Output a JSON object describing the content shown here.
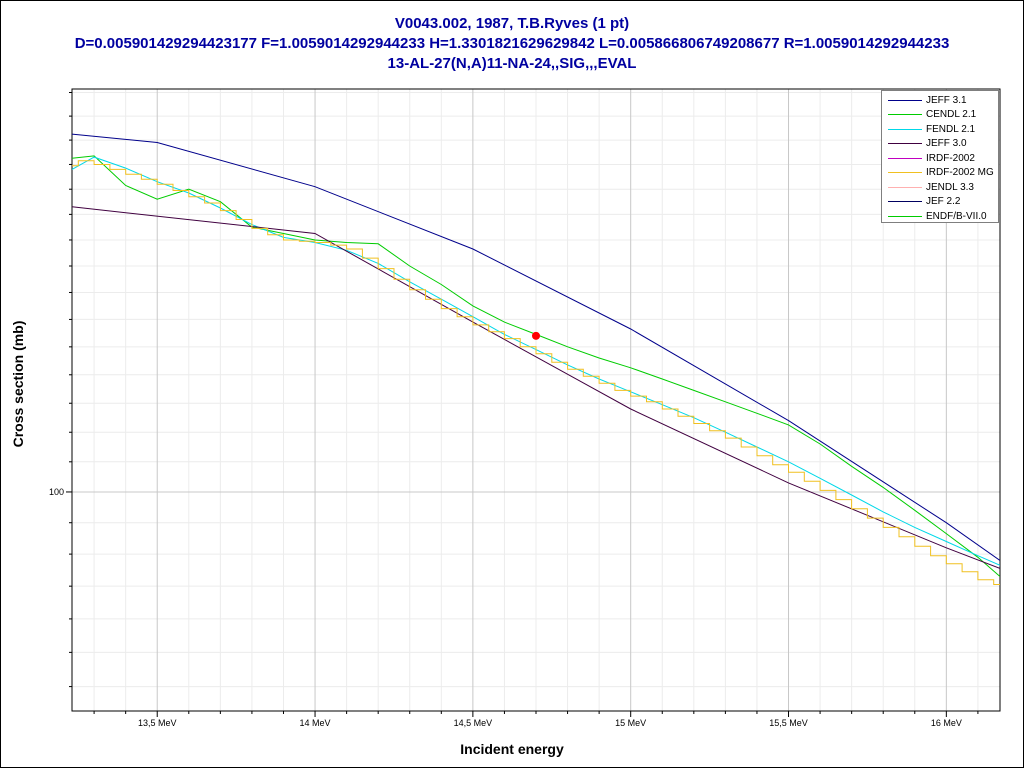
{
  "header": {
    "line1": "V0043.002, 1987, T.B.Ryves (1 pt)",
    "line2": "D=0.005901429294423177 F=1.0059014292944233 H=1.3301821629629842 L=0.005866806749208677 R=1.0059014292944233",
    "line3": "13-AL-27(N,A)11-NA-24,,SIG,,,EVAL"
  },
  "chart_data": {
    "type": "line",
    "xlabel": "Incident energy",
    "ylabel": "Cross section (mb)",
    "x_scale": "linear",
    "y_scale": "log",
    "xlim": [
      13.23,
      16.17
    ],
    "ylim": [
      86.6,
      130.3
    ],
    "grid": true,
    "legend_position": "top-right",
    "x_ticks": [
      {
        "value": 13.5,
        "label": "13,5 MeV"
      },
      {
        "value": 14.0,
        "label": "14 MeV"
      },
      {
        "value": 14.5,
        "label": "14,5 MeV"
      },
      {
        "value": 15.0,
        "label": "15 MeV"
      },
      {
        "value": 15.5,
        "label": "15,5 MeV"
      },
      {
        "value": 16.0,
        "label": "16 MeV"
      }
    ],
    "y_ticks": [
      {
        "value": 100,
        "label": "100"
      }
    ],
    "series": [
      {
        "name": "JEFF 3.1",
        "color": "#00008b",
        "style": "line",
        "x": [
          13.23,
          13.5,
          14.0,
          14.5,
          15.0,
          15.5,
          16.0,
          16.17
        ],
        "y": [
          126.5,
          125.8,
          122.2,
          117.3,
          111.3,
          104.8,
          98.0,
          95.6
        ]
      },
      {
        "name": "CENDL 2.1",
        "color": "#00cc00",
        "style": "line",
        "x": [
          13.23,
          13.3,
          13.4,
          13.5,
          13.6,
          13.7,
          13.8,
          13.9,
          14.0,
          14.1,
          14.2,
          14.3,
          14.4,
          14.5,
          14.6,
          14.7,
          14.8,
          14.9,
          15.0,
          15.1,
          15.2,
          15.3,
          15.4,
          15.5,
          15.6,
          15.7,
          15.8,
          15.9,
          16.0,
          16.1,
          16.17
        ],
        "y": [
          124.5,
          124.7,
          122.3,
          121.2,
          122.0,
          121.0,
          119.0,
          118.5,
          118.0,
          117.8,
          117.7,
          116.0,
          114.6,
          113.0,
          111.8,
          110.9,
          110.0,
          109.2,
          108.5,
          107.7,
          106.9,
          106.1,
          105.3,
          104.5,
          103.2,
          101.7,
          100.3,
          98.8,
          97.3,
          95.8,
          94.6
        ]
      },
      {
        "name": "FENDL 2.1",
        "color": "#00d8e8",
        "style": "line",
        "x": [
          13.23,
          13.3,
          13.4,
          13.5,
          13.6,
          13.7,
          13.8,
          13.9,
          14.0,
          14.1,
          14.2,
          14.3,
          14.4,
          14.5,
          14.6,
          14.7,
          14.8,
          14.9,
          15.0,
          15.1,
          15.2,
          15.3,
          15.4,
          15.5,
          15.6,
          15.7,
          15.8,
          15.9,
          16.0,
          16.1,
          16.17
        ],
        "y": [
          123.6,
          124.6,
          123.7,
          122.6,
          121.7,
          120.5,
          119.2,
          118.2,
          117.8,
          117.2,
          116.2,
          114.8,
          113.5,
          112.2,
          110.9,
          109.8,
          108.7,
          107.7,
          106.8,
          105.9,
          105.0,
          104.0,
          103.0,
          102.0,
          100.9,
          99.8,
          98.7,
          97.7,
          96.8,
          95.9,
          95.3
        ]
      },
      {
        "name": "JEFF 3.0",
        "color": "#400040",
        "style": "line",
        "x": [
          13.23,
          14.0,
          14.5,
          15.0,
          15.5,
          16.0,
          16.17
        ],
        "y": [
          120.6,
          118.5,
          111.8,
          105.6,
          100.6,
          96.4,
          95.1
        ]
      },
      {
        "name": "IRDF-2002",
        "color": "#c000c0",
        "style": "line",
        "x": [],
        "y": []
      },
      {
        "name": "IRDF-2002 MG",
        "color": "#f0c020",
        "style": "step",
        "x": [
          13.2,
          13.25,
          13.3,
          13.35,
          13.4,
          13.45,
          13.5,
          13.55,
          13.6,
          13.65,
          13.7,
          13.75,
          13.8,
          13.85,
          13.9,
          13.95,
          14.0,
          14.05,
          14.1,
          14.15,
          14.2,
          14.25,
          14.3,
          14.35,
          14.4,
          14.45,
          14.5,
          14.55,
          14.6,
          14.65,
          14.7,
          14.75,
          14.8,
          14.85,
          14.9,
          14.95,
          15.0,
          15.05,
          15.1,
          15.15,
          15.2,
          15.25,
          15.3,
          15.35,
          15.4,
          15.45,
          15.5,
          15.55,
          15.6,
          15.65,
          15.7,
          15.75,
          15.8,
          15.85,
          15.9,
          15.95,
          16.0,
          16.05,
          16.1,
          16.15
        ],
        "y": [
          123.9,
          124.3,
          124.0,
          123.6,
          123.2,
          122.8,
          122.4,
          121.9,
          121.4,
          120.9,
          120.3,
          119.6,
          118.9,
          118.4,
          118.0,
          117.9,
          117.8,
          117.6,
          117.3,
          116.6,
          115.8,
          115.0,
          114.2,
          113.5,
          112.8,
          112.2,
          111.6,
          111.1,
          110.6,
          110.0,
          109.5,
          108.9,
          108.4,
          107.9,
          107.4,
          106.9,
          106.5,
          106.1,
          105.6,
          105.1,
          104.6,
          104.1,
          103.6,
          103.0,
          102.4,
          101.8,
          101.3,
          100.7,
          100.1,
          99.5,
          98.9,
          98.3,
          97.7,
          97.1,
          96.5,
          95.9,
          95.4,
          94.9,
          94.4,
          94.1
        ]
      },
      {
        "name": "JENDL 3.3",
        "color": "#ffb0b0",
        "style": "line",
        "x": [],
        "y": []
      },
      {
        "name": "JEF 2.2",
        "color": "#000060",
        "style": "line",
        "x": [],
        "y": []
      },
      {
        "name": "ENDF/B-VII.0",
        "color": "#00cc00",
        "style": "line",
        "x": [],
        "y": []
      }
    ],
    "experimental_points": [
      {
        "x": 14.7,
        "y": 110.8,
        "color": "#ff0000"
      }
    ]
  }
}
